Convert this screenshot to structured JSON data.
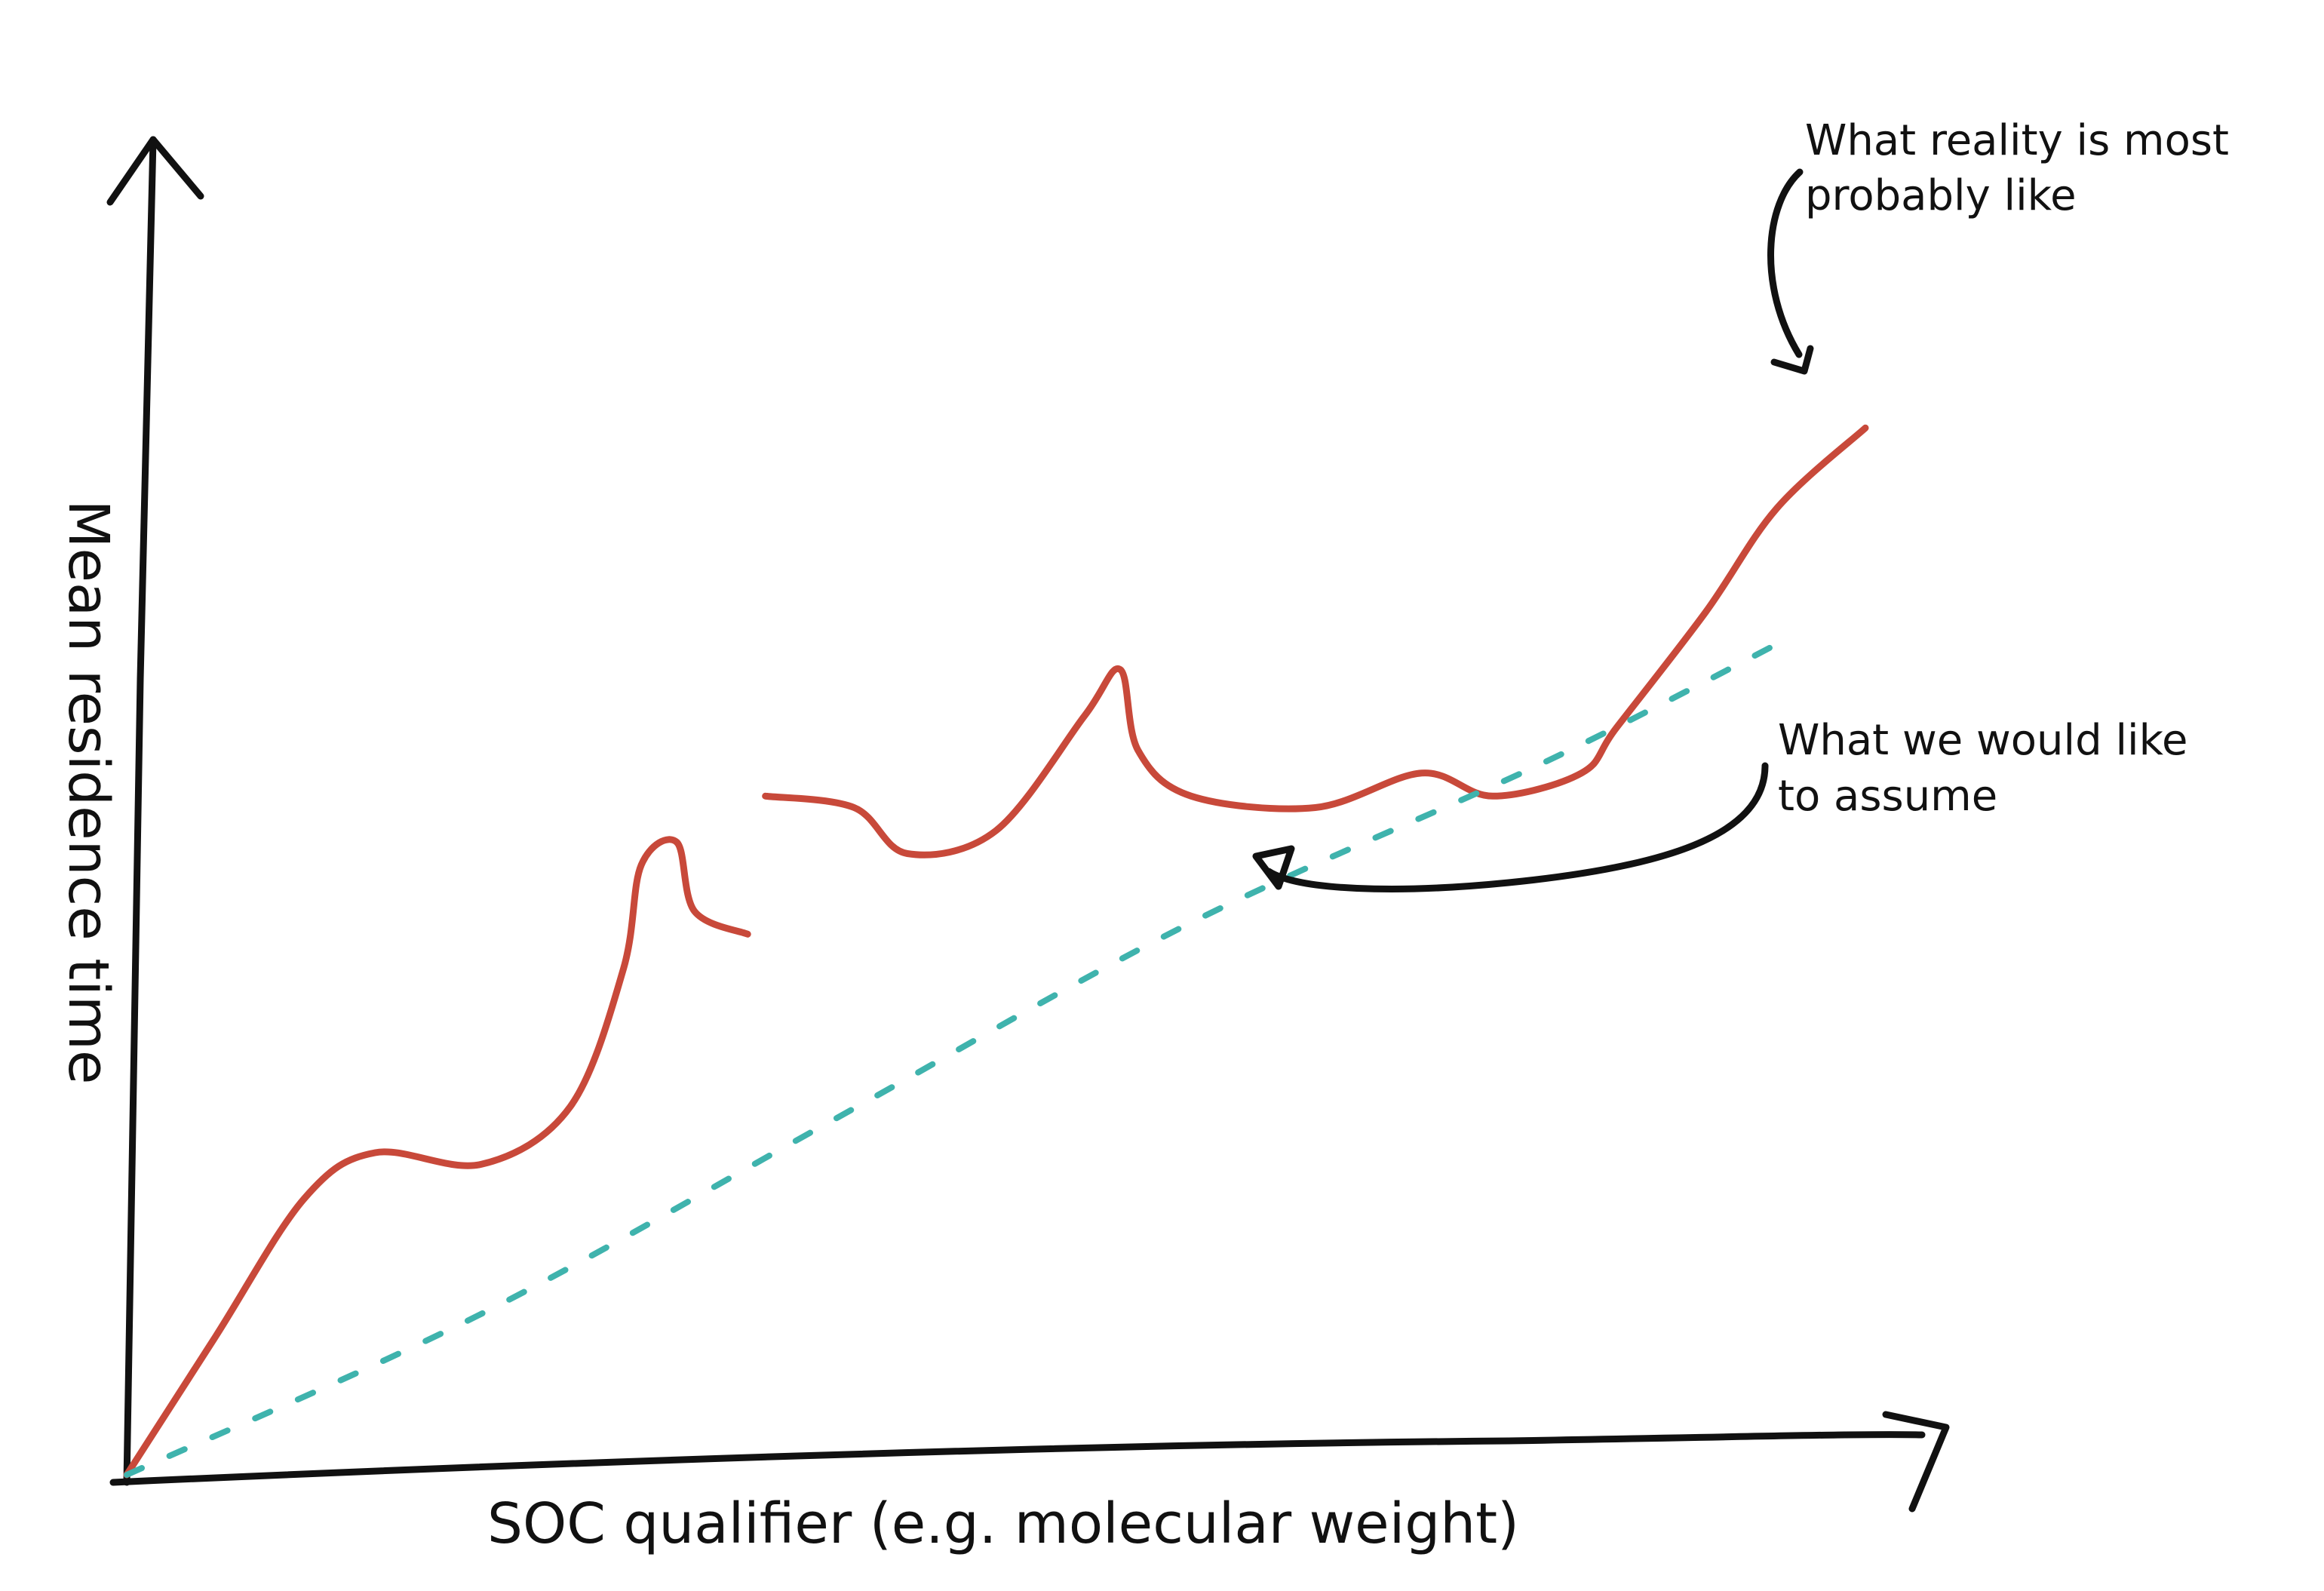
{
  "chart_data": {
    "type": "line",
    "xlabel": "SOC qualifier (e.g. molecular weight)",
    "ylabel": "Mean residence time",
    "grid": false,
    "legend": "none",
    "series": [
      {
        "name": "",
        "style": "solid",
        "color": "#c8493a",
        "segments": [
          [
            [
              0.0,
              0.0
            ],
            [
              0.05,
              0.12
            ],
            [
              0.1,
              0.24
            ],
            [
              0.14,
              0.28
            ],
            [
              0.2,
              0.27
            ],
            [
              0.25,
              0.32
            ],
            [
              0.28,
              0.44
            ],
            [
              0.29,
              0.53
            ],
            [
              0.31,
              0.55
            ],
            [
              0.32,
              0.49
            ],
            [
              0.35,
              0.47
            ]
          ],
          [
            [
              0.36,
              0.59
            ],
            [
              0.41,
              0.58
            ],
            [
              0.44,
              0.54
            ],
            [
              0.49,
              0.56
            ],
            [
              0.54,
              0.66
            ],
            [
              0.56,
              0.7
            ],
            [
              0.57,
              0.63
            ],
            [
              0.6,
              0.59
            ],
            [
              0.67,
              0.58
            ],
            [
              0.73,
              0.61
            ],
            [
              0.77,
              0.59
            ],
            [
              0.82,
              0.61
            ],
            [
              0.84,
              0.65
            ],
            [
              0.89,
              0.75
            ],
            [
              0.93,
              0.84
            ],
            [
              0.98,
              0.91
            ]
          ]
        ]
      },
      {
        "name": "",
        "style": "dashed",
        "color": "#3fb3ad",
        "segments": [
          [
            [
              0.0,
              0.0
            ],
            [
              0.2,
              0.14
            ],
            [
              0.4,
              0.31
            ],
            [
              0.6,
              0.48
            ],
            [
              0.8,
              0.62
            ],
            [
              0.94,
              0.73
            ]
          ]
        ]
      }
    ],
    "annotations": [
      {
        "text_lines": [
          "What reality is most",
          "probably like"
        ]
      },
      {
        "text_lines": [
          "What we would like",
          "to assume"
        ]
      }
    ]
  },
  "colors": {
    "axis": "#111111",
    "reality": "#c8493a",
    "assumption": "#3fb3ad",
    "background": "#ffffff"
  }
}
